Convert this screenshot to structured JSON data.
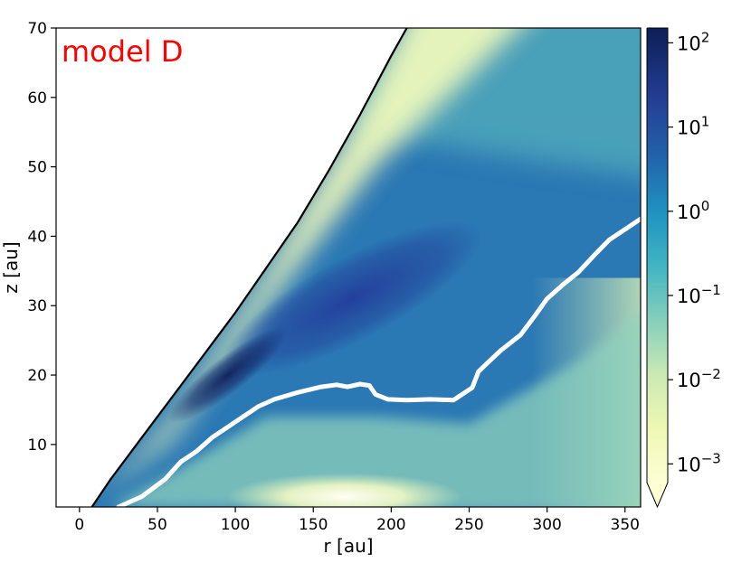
{
  "chart_data": {
    "type": "heatmap",
    "panel_label": "model D",
    "panel_label_color": "#ff0000",
    "xlabel": "r [au]",
    "ylabel": "z [au]",
    "xlim": [
      -15,
      360
    ],
    "ylim": [
      1,
      70
    ],
    "xticks": [
      "0",
      "50",
      "100",
      "150",
      "200",
      "250",
      "300",
      "350"
    ],
    "xtick_values": [
      0,
      50,
      100,
      150,
      200,
      250,
      300,
      350
    ],
    "yticks": [
      "10",
      "20",
      "30",
      "40",
      "50",
      "60",
      "70"
    ],
    "ytick_values": [
      10,
      20,
      30,
      40,
      50,
      60,
      70
    ],
    "colorbar": {
      "scale": "log",
      "range": [
        0.0006,
        150
      ],
      "extend": "min",
      "colormap": "YlGnBu",
      "tick_base": "10",
      "tick_exponents": [
        "2",
        "1",
        "0",
        "−1",
        "−2",
        "−3"
      ],
      "tick_values": [
        100,
        10,
        1,
        0.1,
        0.01,
        0.001
      ]
    },
    "boundary_curve": {
      "color": "#000000",
      "points": [
        [
          8,
          1
        ],
        [
          20,
          5
        ],
        [
          40,
          11
        ],
        [
          60,
          17
        ],
        [
          80,
          23
        ],
        [
          100,
          29
        ],
        [
          120,
          35.5
        ],
        [
          140,
          42
        ],
        [
          160,
          49.5
        ],
        [
          180,
          57.5
        ],
        [
          200,
          66
        ],
        [
          210,
          70
        ]
      ]
    },
    "white_contour": {
      "color": "#ffffff",
      "points": [
        [
          25,
          1
        ],
        [
          40,
          2.5
        ],
        [
          55,
          5
        ],
        [
          65,
          7.5
        ],
        [
          75,
          9
        ],
        [
          85,
          11
        ],
        [
          95,
          12.5
        ],
        [
          105,
          14
        ],
        [
          115,
          15.5
        ],
        [
          125,
          16.5
        ],
        [
          140,
          17.5
        ],
        [
          155,
          18.3
        ],
        [
          165,
          18.6
        ],
        [
          172,
          18.3
        ],
        [
          180,
          18.7
        ],
        [
          186,
          18.5
        ],
        [
          190,
          17.2
        ],
        [
          198,
          16.5
        ],
        [
          210,
          16.4
        ],
        [
          225,
          16.5
        ],
        [
          240,
          16.4
        ],
        [
          252,
          18.2
        ],
        [
          256,
          20.5
        ],
        [
          262,
          21.8
        ],
        [
          270,
          23.5
        ],
        [
          283,
          25.8
        ],
        [
          292,
          28.5
        ],
        [
          300,
          31
        ],
        [
          310,
          33
        ],
        [
          320,
          34.8
        ],
        [
          330,
          37.2
        ],
        [
          340,
          39.5
        ],
        [
          350,
          41
        ],
        [
          360,
          42.5
        ]
      ]
    }
  }
}
